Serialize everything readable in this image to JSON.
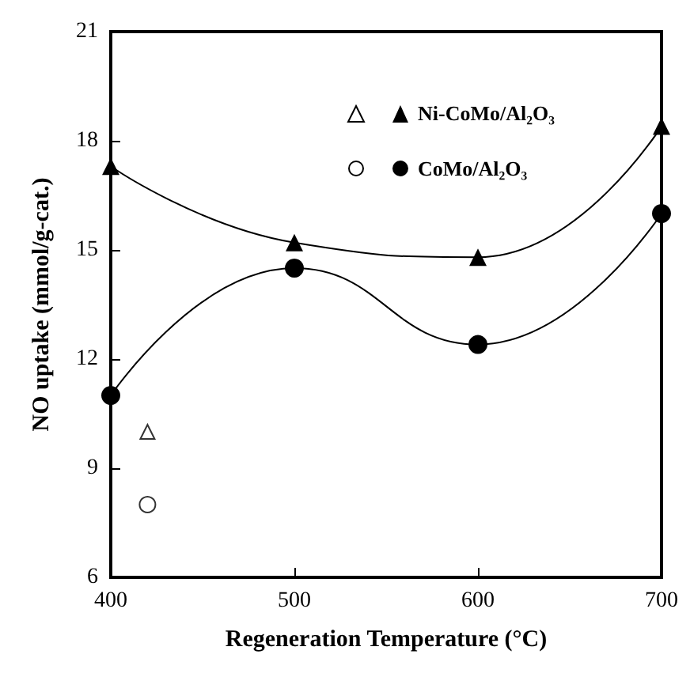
{
  "chart_data": {
    "type": "line",
    "xlabel": "Regeneration Temperature (°C)",
    "ylabel": "NO uptake (mmol/g-cat.)",
    "xlim": [
      400,
      700
    ],
    "xticks": [
      400,
      500,
      600,
      700
    ],
    "ylim": [
      6,
      21
    ],
    "yticks": [
      6,
      9,
      12,
      15,
      18,
      21
    ],
    "grid": false,
    "legend": "top right",
    "line_style": "solid",
    "series": [
      {
        "name": "Ni-CoMo/Al₂O₃",
        "color": "#000000",
        "marker": "triangle",
        "x": [
          400,
          500,
          600,
          700
        ],
        "values": [
          17.3,
          15.2,
          14.8,
          18.4
        ]
      },
      {
        "name": "CoMo/Al₂O₃",
        "color": "#000000",
        "marker": "circle",
        "x": [
          400,
          500,
          600,
          700
        ],
        "values": [
          11,
          14.5,
          12.4,
          16
        ]
      },
      {
        "type": "scatter",
        "color": "#000000",
        "marker": "triangle",
        "x": [
          420
        ],
        "values": [
          10
        ]
      },
      {
        "type": "scatter",
        "color": "#000000",
        "marker": "circle",
        "x": [
          420
        ],
        "values": [
          8
        ]
      }
    ]
  }
}
